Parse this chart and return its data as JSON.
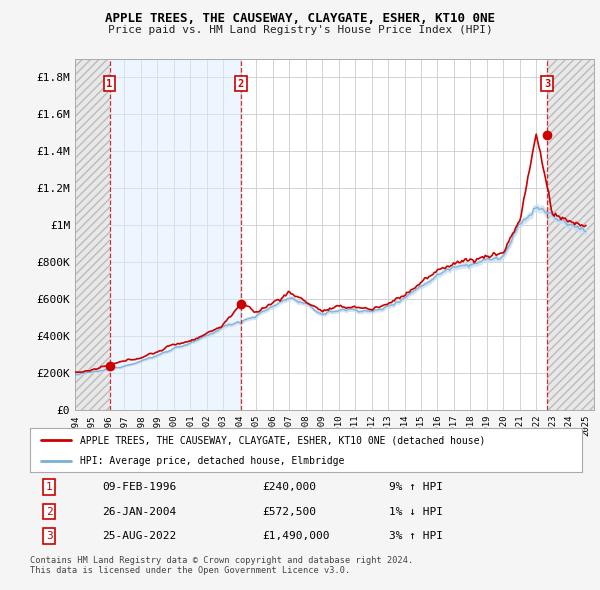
{
  "title": "APPLE TREES, THE CAUSEWAY, CLAYGATE, ESHER, KT10 0NE",
  "subtitle": "Price paid vs. HM Land Registry's House Price Index (HPI)",
  "legend_line1": "APPLE TREES, THE CAUSEWAY, CLAYGATE, ESHER, KT10 0NE (detached house)",
  "legend_line2": "HPI: Average price, detached house, Elmbridge",
  "transactions": [
    {
      "num": 1,
      "date": "09-FEB-1996",
      "price": "£240,000",
      "hpi": "9% ↑ HPI",
      "year": 1996.1,
      "value": 240000
    },
    {
      "num": 2,
      "date": "26-JAN-2004",
      "price": "£572,500",
      "hpi": "1% ↓ HPI",
      "year": 2004.07,
      "value": 572500
    },
    {
      "num": 3,
      "date": "25-AUG-2022",
      "price": "£1,490,000",
      "hpi": "3% ↑ HPI",
      "year": 2022.65,
      "value": 1490000
    }
  ],
  "footer1": "Contains HM Land Registry data © Crown copyright and database right 2024.",
  "footer2": "This data is licensed under the Open Government Licence v3.0.",
  "ylim": [
    0,
    1900000
  ],
  "yticks": [
    0,
    200000,
    400000,
    600000,
    800000,
    1000000,
    1200000,
    1400000,
    1600000,
    1800000
  ],
  "ytick_labels": [
    "£0",
    "£200K",
    "£400K",
    "£600K",
    "£800K",
    "£1M",
    "£1.2M",
    "£1.4M",
    "£1.6M",
    "£1.8M"
  ],
  "price_color": "#cc0000",
  "hpi_color": "#7bafd4",
  "hpi_fill_color": "#c8dff0",
  "hpi_fill_alpha": 0.6,
  "vline_color": "#cc0000",
  "grid_color": "#cccccc",
  "bg_color": "#f5f5f5",
  "plot_bg": "#ffffff",
  "span_color": "#ddeeff",
  "span_alpha": 0.5,
  "hatch_color": "#e0e0e0"
}
